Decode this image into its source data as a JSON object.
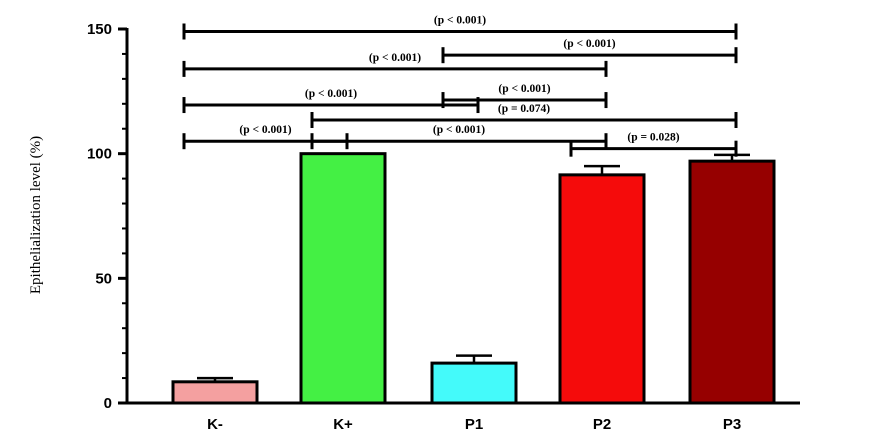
{
  "chart_data": {
    "type": "bar",
    "title": "",
    "xlabel": "",
    "ylabel": "Epithelialization level (%)",
    "ylim": [
      0,
      150
    ],
    "yticks": [
      0,
      50,
      100,
      150
    ],
    "grid": false,
    "categories": [
      "K-",
      "K+",
      "P1",
      "P2",
      "P3"
    ],
    "values": [
      8.5,
      100,
      16,
      91.5,
      97
    ],
    "errors": [
      1.5,
      0,
      3,
      3.5,
      2.5
    ],
    "colors": [
      "#f4a0a0",
      "#44f044",
      "#44fafa",
      "#f50b0b",
      "#960000"
    ],
    "comparisons": [
      {
        "from": "K-",
        "to": "P3",
        "label": "(p < 0.001)",
        "level": 149
      },
      {
        "from": "P1",
        "to": "P3",
        "label": "(p < 0.001)",
        "level": 139.5
      },
      {
        "from": "K-",
        "to": "P2",
        "label": "(p < 0.001)",
        "level": 134
      },
      {
        "from": "K-",
        "to": "P1",
        "label": "(p < 0.001)",
        "level": 119.5
      },
      {
        "from": "P1",
        "to": "P2",
        "label": "(p < 0.001)",
        "level": 121.5
      },
      {
        "from": "K+",
        "to": "P3",
        "label": "(p = 0.074)",
        "level": 113.5
      },
      {
        "from": "K-",
        "to": "K+",
        "label": "(p < 0.001)",
        "level": 105
      },
      {
        "from": "K+",
        "to": "P2",
        "label": "(p < 0.001)",
        "level": 105
      },
      {
        "from": "P2",
        "to": "P3",
        "label": "(p = 0.028)",
        "level": 102
      }
    ]
  }
}
